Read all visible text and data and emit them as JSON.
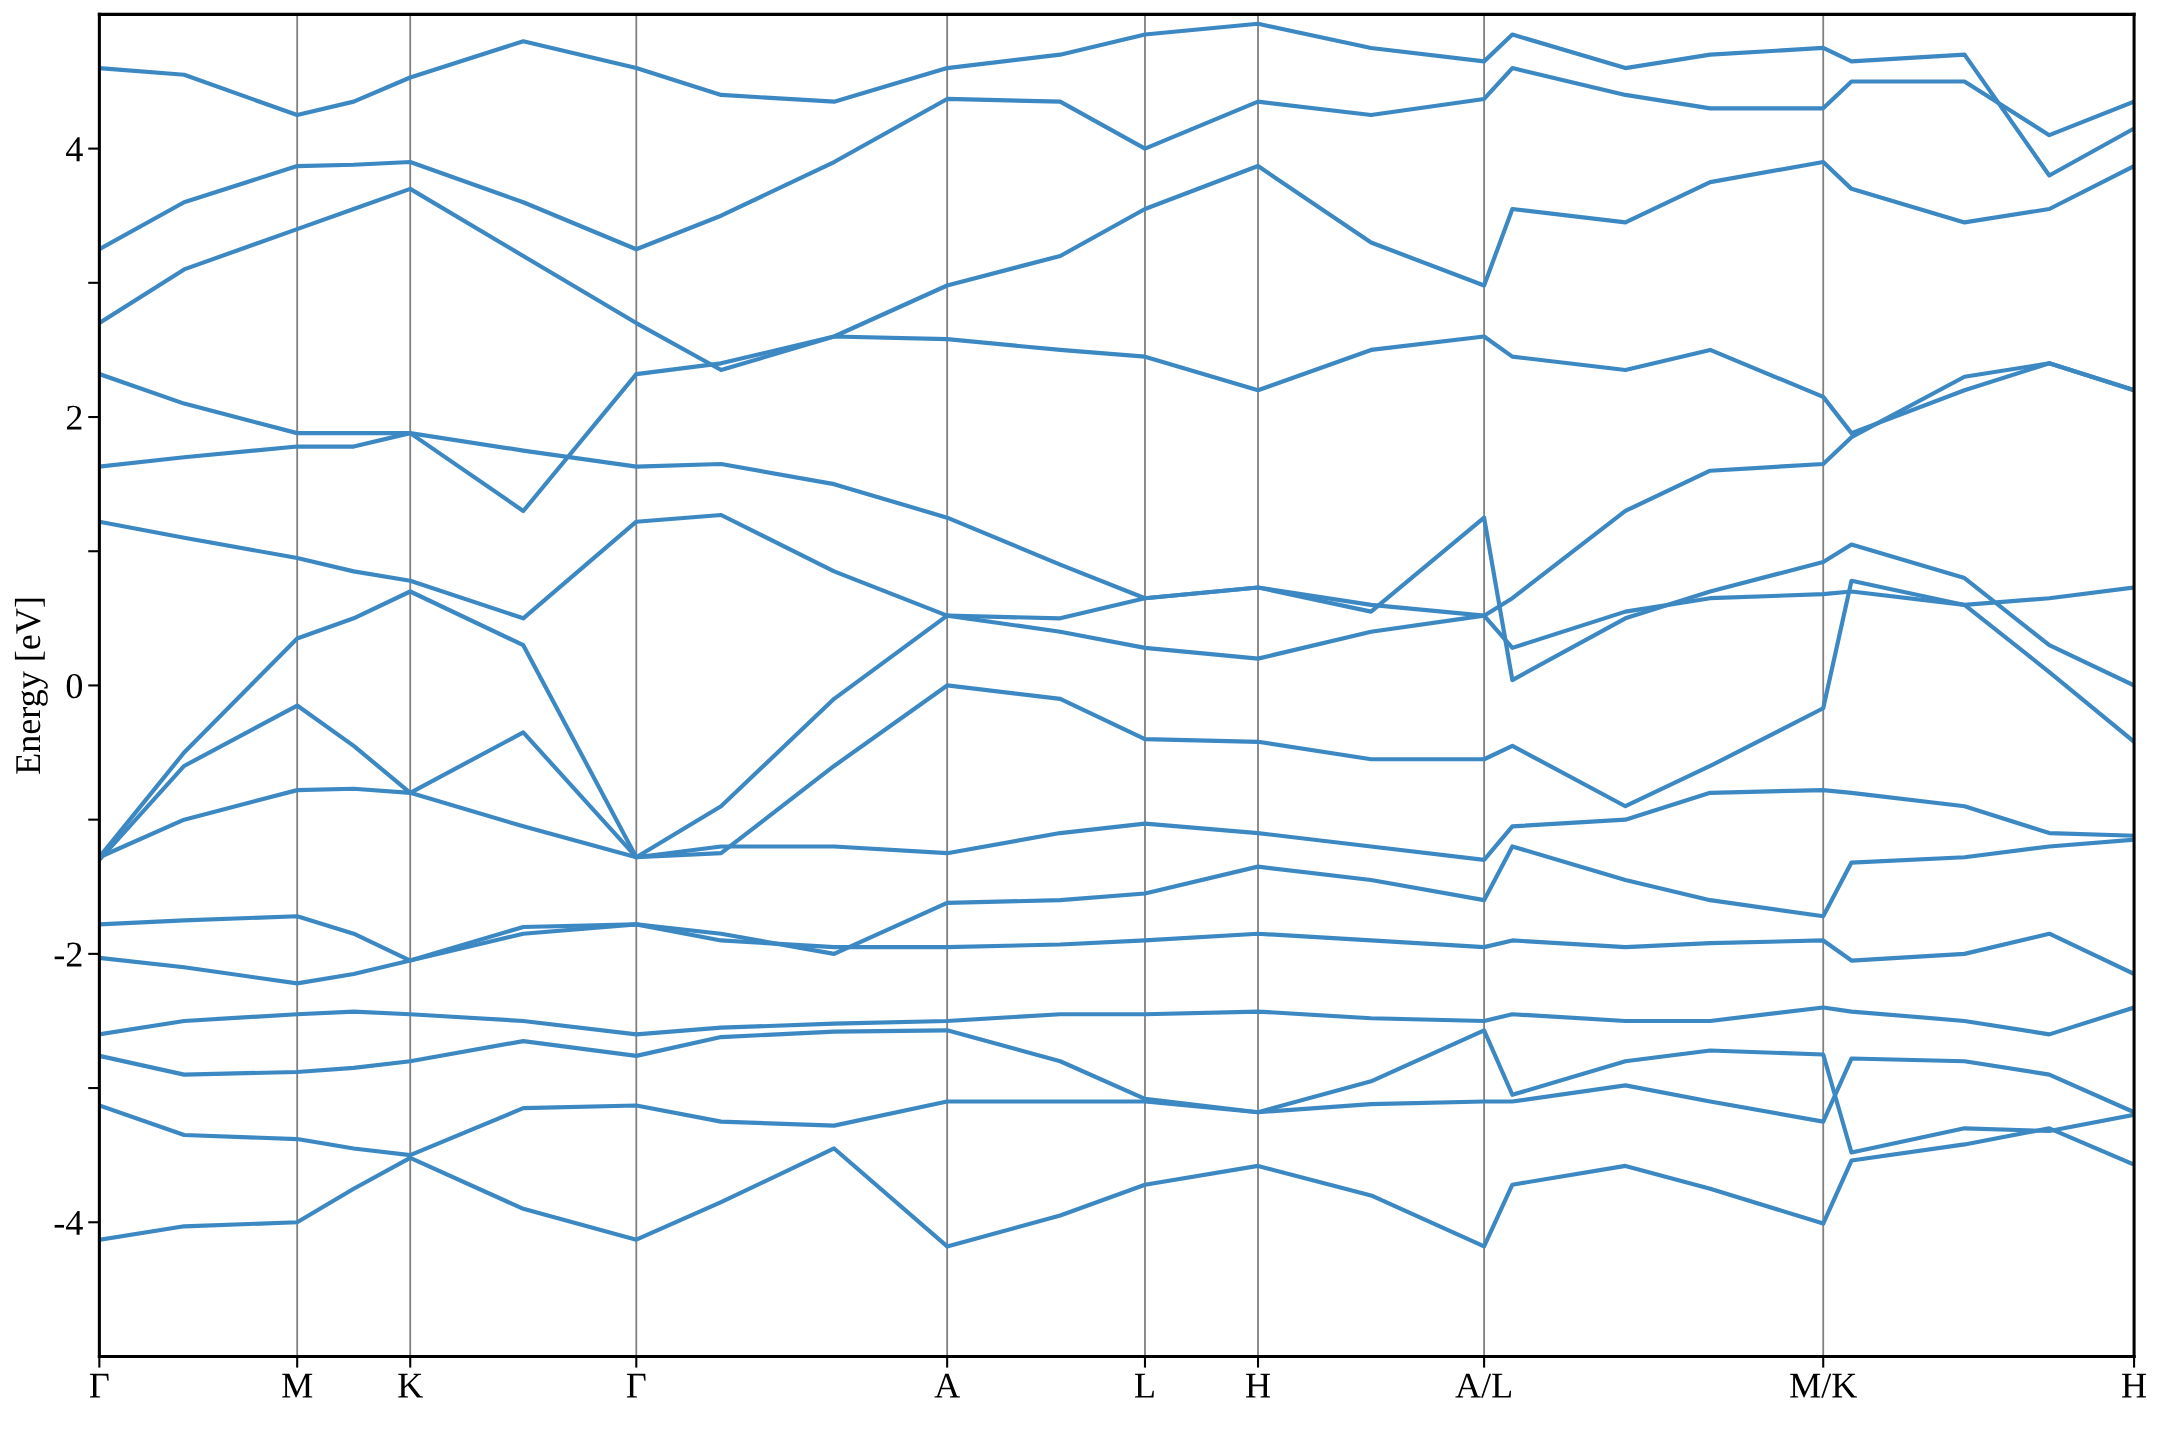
{
  "chart_data": {
    "type": "line",
    "ylabel": "Energy [eV]",
    "categories": [
      "Γ",
      null,
      null,
      null,
      null,
      null,
      null,
      "M",
      null,
      null,
      null,
      "K",
      null,
      null,
      null,
      null,
      null,
      null,
      null,
      "Γ",
      null,
      null,
      null,
      null,
      null,
      null,
      null,
      null,
      null,
      null,
      "A",
      null,
      null,
      null,
      null,
      null,
      null,
      "L",
      null,
      null,
      null,
      "H",
      null,
      null,
      null,
      null,
      null,
      null,
      null,
      "A/L",
      null,
      null,
      null,
      null,
      null,
      null,
      null,
      null,
      null,
      null,
      null,
      "M/K",
      null,
      null,
      null,
      null,
      null,
      null,
      null,
      null,
      null,
      null,
      "H"
    ],
    "ylim": [
      -5,
      5
    ],
    "yticks": [
      {
        "value": -4,
        "label": "-4"
      },
      {
        "value": -3,
        "label": null
      },
      {
        "value": -2,
        "label": "-2"
      },
      {
        "value": -1,
        "label": null
      },
      {
        "value": 0,
        "label": "0"
      },
      {
        "value": 1,
        "label": null
      },
      {
        "value": 2,
        "label": "2"
      },
      {
        "value": 3,
        "label": null
      },
      {
        "value": 4,
        "label": "4"
      }
    ],
    "grid": "x",
    "series": [
      {
        "color": "#3c88c3",
        "values": [
          -4.13,
          null,
          null,
          -4.03,
          null,
          null,
          null,
          -4.0,
          null,
          -3.75,
          null,
          -3.52,
          null,
          null,
          null,
          -3.9,
          null,
          null,
          null,
          -4.13,
          null,
          null,
          -3.85,
          null,
          null,
          null,
          -3.45,
          null,
          null,
          null,
          -4.18,
          null,
          null,
          null,
          -3.95,
          null,
          null,
          -3.72,
          null,
          null,
          null,
          -3.58,
          null,
          null,
          null,
          -3.8,
          null,
          null,
          null,
          -4.18,
          -3.72,
          null,
          null,
          null,
          -3.58,
          null,
          null,
          -3.75,
          null,
          null,
          null,
          -4.01,
          -3.54,
          null,
          null,
          null,
          -3.42,
          null,
          null,
          -3.3,
          null,
          null,
          -3.57
        ]
      },
      {
        "color": "#3c88c3",
        "values": [
          -3.13,
          null,
          null,
          -3.35,
          null,
          null,
          null,
          -3.38,
          null,
          -3.45,
          null,
          -3.5,
          null,
          null,
          null,
          -3.15,
          null,
          null,
          null,
          -3.13,
          null,
          null,
          -3.25,
          null,
          null,
          null,
          -3.28,
          null,
          null,
          null,
          -3.1,
          null,
          null,
          null,
          -3.1,
          null,
          null,
          -3.1,
          null,
          null,
          null,
          -3.18,
          null,
          null,
          null,
          -3.12,
          null,
          null,
          null,
          -3.1,
          -3.1,
          null,
          null,
          null,
          -2.98,
          null,
          null,
          -3.1,
          null,
          null,
          null,
          -3.25,
          -2.78,
          null,
          null,
          null,
          -2.8,
          null,
          null,
          -2.9,
          null,
          null,
          -3.18
        ]
      },
      {
        "color": "#3c88c3",
        "values": [
          -2.76,
          null,
          null,
          -2.9,
          null,
          null,
          null,
          -2.88,
          null,
          -2.85,
          null,
          -2.8,
          null,
          null,
          null,
          -2.65,
          null,
          null,
          null,
          -2.76,
          null,
          null,
          -2.62,
          null,
          null,
          null,
          -2.58,
          null,
          null,
          null,
          -2.57,
          null,
          null,
          null,
          -2.8,
          null,
          null,
          -3.08,
          null,
          null,
          null,
          -3.18,
          null,
          null,
          null,
          -2.95,
          null,
          null,
          null,
          -2.57,
          -3.05,
          null,
          null,
          null,
          -2.8,
          null,
          null,
          -2.72,
          null,
          null,
          null,
          -2.75,
          -3.48,
          null,
          null,
          null,
          -3.3,
          null,
          null,
          -3.32,
          null,
          null,
          -3.2
        ]
      },
      {
        "color": "#3c88c3",
        "values": [
          -2.6,
          null,
          null,
          -2.5,
          null,
          null,
          null,
          -2.45,
          null,
          -2.43,
          null,
          -2.45,
          null,
          null,
          null,
          -2.5,
          null,
          null,
          null,
          -2.6,
          null,
          null,
          -2.55,
          null,
          null,
          null,
          -2.52,
          null,
          null,
          null,
          -2.5,
          null,
          null,
          null,
          -2.45,
          null,
          null,
          -2.45,
          null,
          null,
          null,
          -2.43,
          null,
          null,
          null,
          -2.48,
          null,
          null,
          null,
          -2.5,
          -2.45,
          null,
          null,
          null,
          -2.5,
          null,
          null,
          -2.5,
          null,
          null,
          null,
          -2.4,
          -2.43,
          null,
          null,
          null,
          -2.5,
          null,
          null,
          -2.6,
          null,
          null,
          -2.4
        ]
      },
      {
        "color": "#3c88c3",
        "values": [
          -2.03,
          null,
          null,
          -2.1,
          null,
          null,
          null,
          -2.22,
          null,
          -2.15,
          null,
          -2.05,
          null,
          null,
          null,
          -1.85,
          null,
          null,
          null,
          -1.78,
          null,
          null,
          -1.9,
          null,
          null,
          null,
          -1.95,
          null,
          null,
          null,
          -1.95,
          null,
          null,
          null,
          -1.93,
          null,
          null,
          -1.9,
          null,
          null,
          null,
          -1.85,
          null,
          null,
          null,
          -1.9,
          null,
          null,
          null,
          -1.95,
          -1.9,
          null,
          null,
          null,
          -1.95,
          null,
          null,
          -1.92,
          null,
          null,
          null,
          -1.9,
          -2.05,
          null,
          null,
          null,
          -2.0,
          null,
          null,
          -1.85,
          null,
          null,
          -2.15
        ]
      },
      {
        "color": "#3c88c3",
        "values": [
          -1.78,
          null,
          null,
          -1.75,
          null,
          null,
          null,
          -1.72,
          null,
          -1.85,
          null,
          -2.05,
          null,
          null,
          null,
          -1.8,
          null,
          null,
          null,
          -1.78,
          null,
          null,
          -1.85,
          null,
          null,
          null,
          -2.0,
          null,
          null,
          null,
          -1.62,
          null,
          null,
          null,
          -1.6,
          null,
          null,
          -1.55,
          null,
          null,
          null,
          -1.35,
          null,
          null,
          null,
          -1.45,
          null,
          null,
          null,
          -1.6,
          -1.2,
          null,
          null,
          null,
          -1.45,
          null,
          null,
          -1.6,
          null,
          null,
          null,
          -1.72,
          -1.32,
          null,
          null,
          null,
          -1.28,
          null,
          null,
          -1.2,
          null,
          null,
          -1.15
        ]
      },
      {
        "color": "#3c88c3",
        "values": [
          -1.28,
          null,
          null,
          -1.0,
          null,
          null,
          null,
          -0.78,
          null,
          -0.77,
          null,
          -0.8,
          null,
          null,
          null,
          -1.05,
          null,
          null,
          null,
          -1.28,
          null,
          null,
          -1.2,
          null,
          null,
          null,
          -1.2,
          null,
          null,
          null,
          -1.25,
          null,
          null,
          null,
          -1.1,
          null,
          null,
          -1.03,
          null,
          null,
          null,
          -1.1,
          null,
          null,
          null,
          -1.2,
          null,
          null,
          null,
          -1.3,
          -1.05,
          null,
          null,
          null,
          -1.0,
          null,
          null,
          -0.8,
          null,
          null,
          null,
          -0.78,
          -0.8,
          null,
          null,
          null,
          -0.9,
          null,
          null,
          -1.1,
          null,
          null,
          -1.12
        ]
      },
      {
        "color": "#3c88c3",
        "values": [
          -1.3,
          null,
          null,
          -0.6,
          null,
          null,
          null,
          -0.15,
          null,
          -0.45,
          null,
          -0.8,
          null,
          null,
          null,
          -0.35,
          null,
          null,
          null,
          -1.28,
          null,
          null,
          -1.25,
          null,
          null,
          null,
          -0.6,
          null,
          null,
          null,
          0.0,
          null,
          null,
          null,
          -0.1,
          null,
          null,
          -0.4,
          null,
          null,
          null,
          -0.42,
          null,
          null,
          null,
          -0.55,
          null,
          null,
          null,
          -0.55,
          -0.45,
          null,
          null,
          null,
          -0.9,
          null,
          null,
          -0.6,
          null,
          null,
          null,
          -0.17,
          0.78,
          null,
          null,
          null,
          0.6,
          null,
          null,
          0.1,
          null,
          null,
          -0.42
        ]
      },
      {
        "color": "#3c88c3",
        "values": [
          -1.28,
          null,
          null,
          -0.5,
          null,
          null,
          null,
          0.35,
          null,
          0.5,
          null,
          0.7,
          null,
          null,
          null,
          0.3,
          null,
          null,
          null,
          -1.28,
          null,
          null,
          -0.9,
          null,
          null,
          null,
          -0.1,
          null,
          null,
          null,
          0.52,
          null,
          null,
          null,
          0.5,
          null,
          null,
          0.65,
          null,
          null,
          null,
          0.73,
          null,
          null,
          null,
          0.6,
          null,
          null,
          null,
          0.52,
          0.65,
          null,
          null,
          null,
          1.3,
          null,
          null,
          1.6,
          null,
          null,
          null,
          1.65,
          1.85,
          null,
          null,
          null,
          2.3,
          null,
          null,
          2.4,
          null,
          null,
          2.2
        ]
      },
      {
        "color": "#3c88c3",
        "values": [
          1.22,
          null,
          null,
          1.1,
          null,
          null,
          null,
          0.95,
          null,
          0.85,
          null,
          0.78,
          null,
          null,
          null,
          0.5,
          null,
          null,
          null,
          1.22,
          null,
          null,
          1.27,
          null,
          null,
          null,
          0.85,
          null,
          null,
          null,
          0.52,
          null,
          null,
          null,
          0.4,
          null,
          null,
          0.28,
          null,
          null,
          null,
          0.2,
          null,
          null,
          null,
          0.4,
          null,
          null,
          null,
          0.52,
          0.28,
          null,
          null,
          null,
          0.55,
          null,
          null,
          0.65,
          null,
          null,
          null,
          0.68,
          0.7,
          null,
          null,
          null,
          0.6,
          null,
          null,
          0.65,
          null,
          null,
          0.73
        ]
      },
      {
        "color": "#3c88c3",
        "values": [
          1.63,
          null,
          null,
          1.7,
          null,
          null,
          null,
          1.78,
          null,
          1.78,
          null,
          1.88,
          null,
          null,
          null,
          1.75,
          null,
          null,
          null,
          1.63,
          null,
          null,
          1.65,
          null,
          null,
          null,
          1.5,
          null,
          null,
          null,
          1.25,
          null,
          null,
          null,
          0.9,
          null,
          null,
          0.65,
          null,
          null,
          null,
          0.73,
          null,
          null,
          null,
          0.55,
          null,
          null,
          null,
          1.25,
          0.04,
          null,
          null,
          null,
          0.5,
          null,
          null,
          0.7,
          null,
          null,
          null,
          0.92,
          1.05,
          null,
          null,
          null,
          0.8,
          null,
          null,
          0.3,
          null,
          null,
          0.0
        ]
      },
      {
        "color": "#3c88c3",
        "values": [
          2.32,
          null,
          null,
          2.1,
          null,
          null,
          null,
          1.88,
          null,
          1.88,
          null,
          1.88,
          null,
          null,
          null,
          1.3,
          null,
          null,
          null,
          2.32,
          null,
          null,
          2.4,
          null,
          null,
          null,
          2.6,
          null,
          null,
          null,
          2.58,
          null,
          null,
          null,
          2.5,
          null,
          null,
          2.45,
          null,
          null,
          null,
          2.2,
          null,
          null,
          null,
          2.5,
          null,
          null,
          null,
          2.6,
          2.45,
          null,
          null,
          null,
          2.35,
          null,
          null,
          2.5,
          null,
          null,
          null,
          2.15,
          1.88,
          null,
          null,
          null,
          2.2,
          null,
          null,
          2.4,
          null,
          null,
          2.2
        ]
      },
      {
        "color": "#3c88c3",
        "values": [
          2.7,
          null,
          null,
          3.1,
          null,
          null,
          null,
          3.4,
          null,
          3.55,
          null,
          3.7,
          null,
          null,
          null,
          3.2,
          null,
          null,
          null,
          2.7,
          null,
          null,
          2.35,
          null,
          null,
          null,
          2.6,
          null,
          null,
          null,
          2.98,
          null,
          null,
          null,
          3.2,
          null,
          null,
          3.55,
          null,
          null,
          null,
          3.87,
          null,
          null,
          null,
          3.3,
          null,
          null,
          null,
          2.98,
          3.55,
          null,
          null,
          null,
          3.45,
          null,
          null,
          3.75,
          null,
          null,
          null,
          3.9,
          3.7,
          null,
          null,
          null,
          3.45,
          null,
          null,
          3.55,
          null,
          null,
          3.87
        ]
      },
      {
        "color": "#3c88c3",
        "values": [
          3.25,
          null,
          null,
          3.6,
          null,
          null,
          null,
          3.87,
          null,
          3.88,
          null,
          3.9,
          null,
          null,
          null,
          3.6,
          null,
          null,
          null,
          3.25,
          null,
          null,
          3.5,
          null,
          null,
          null,
          3.9,
          null,
          null,
          null,
          4.37,
          null,
          null,
          null,
          4.35,
          null,
          null,
          4.0,
          null,
          null,
          null,
          4.35,
          null,
          null,
          null,
          4.25,
          null,
          null,
          null,
          4.37,
          4.6,
          null,
          null,
          null,
          4.4,
          null,
          null,
          4.3,
          null,
          null,
          null,
          4.3,
          4.5,
          null,
          null,
          null,
          4.5,
          null,
          null,
          4.1,
          null,
          null,
          4.35
        ]
      },
      {
        "color": "#3c88c3",
        "values": [
          4.6,
          null,
          null,
          4.55,
          null,
          null,
          null,
          4.25,
          null,
          4.35,
          null,
          4.53,
          null,
          null,
          null,
          4.8,
          null,
          null,
          null,
          4.6,
          null,
          null,
          4.4,
          null,
          null,
          null,
          4.35,
          null,
          null,
          null,
          4.6,
          null,
          null,
          null,
          4.7,
          null,
          null,
          4.85,
          null,
          null,
          null,
          4.93,
          null,
          null,
          null,
          4.75,
          null,
          null,
          null,
          4.65,
          4.85,
          null,
          null,
          null,
          4.6,
          null,
          null,
          4.7,
          null,
          null,
          null,
          4.75,
          4.65,
          null,
          null,
          null,
          4.7,
          null,
          null,
          3.8,
          null,
          null,
          4.15
        ]
      }
    ]
  }
}
